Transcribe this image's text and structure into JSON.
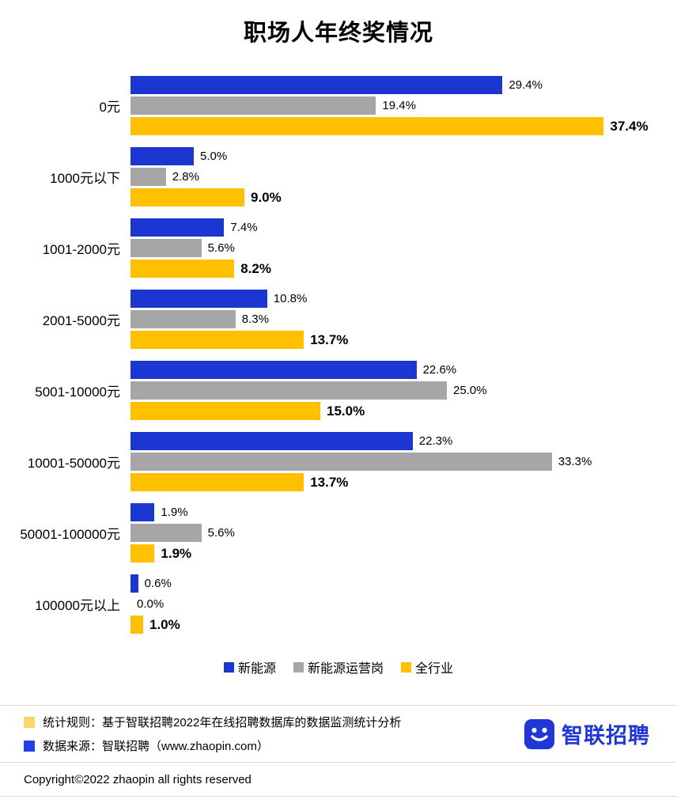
{
  "chart_data": {
    "type": "bar",
    "orientation": "horizontal",
    "title": "职场人年终奖情况",
    "xlabel": "",
    "ylabel": "",
    "value_suffix": "%",
    "xlim": [
      0,
      40
    ],
    "grid": false,
    "legend_position": "bottom",
    "categories": [
      "0元",
      "1000元以下",
      "1001-2000元",
      "2001-5000元",
      "5001-10000元",
      "10001-50000元",
      "50001-100000元",
      "100000元以上"
    ],
    "series": [
      {
        "name": "新能源",
        "color": "#1B36D1",
        "values": [
          29.4,
          5.0,
          7.4,
          10.8,
          22.6,
          22.3,
          1.9,
          0.6
        ]
      },
      {
        "name": "新能源运营岗",
        "color": "#A6A6A6",
        "values": [
          19.4,
          2.8,
          5.6,
          8.3,
          25.0,
          33.3,
          5.6,
          0.0
        ]
      },
      {
        "name": "全行业",
        "color": "#FFC000",
        "values": [
          37.4,
          9.0,
          8.2,
          13.7,
          15.0,
          13.7,
          1.9,
          1.0
        ]
      }
    ]
  },
  "footer": {
    "note1": "统计规则：基于智联招聘2022年在线招聘数据库的数据监测统计分析",
    "note2": "数据来源：智联招聘（www.zhaopin.com）",
    "logo_text": "智联招聘",
    "copyright": "Copyright©2022 zhaopin all rights reserved"
  },
  "colors": {
    "note_square_yellow": "#FBD76B",
    "note_square_blue": "#2140E8",
    "logo_blue": "#2036D6",
    "divider": "#D9D9D9"
  }
}
